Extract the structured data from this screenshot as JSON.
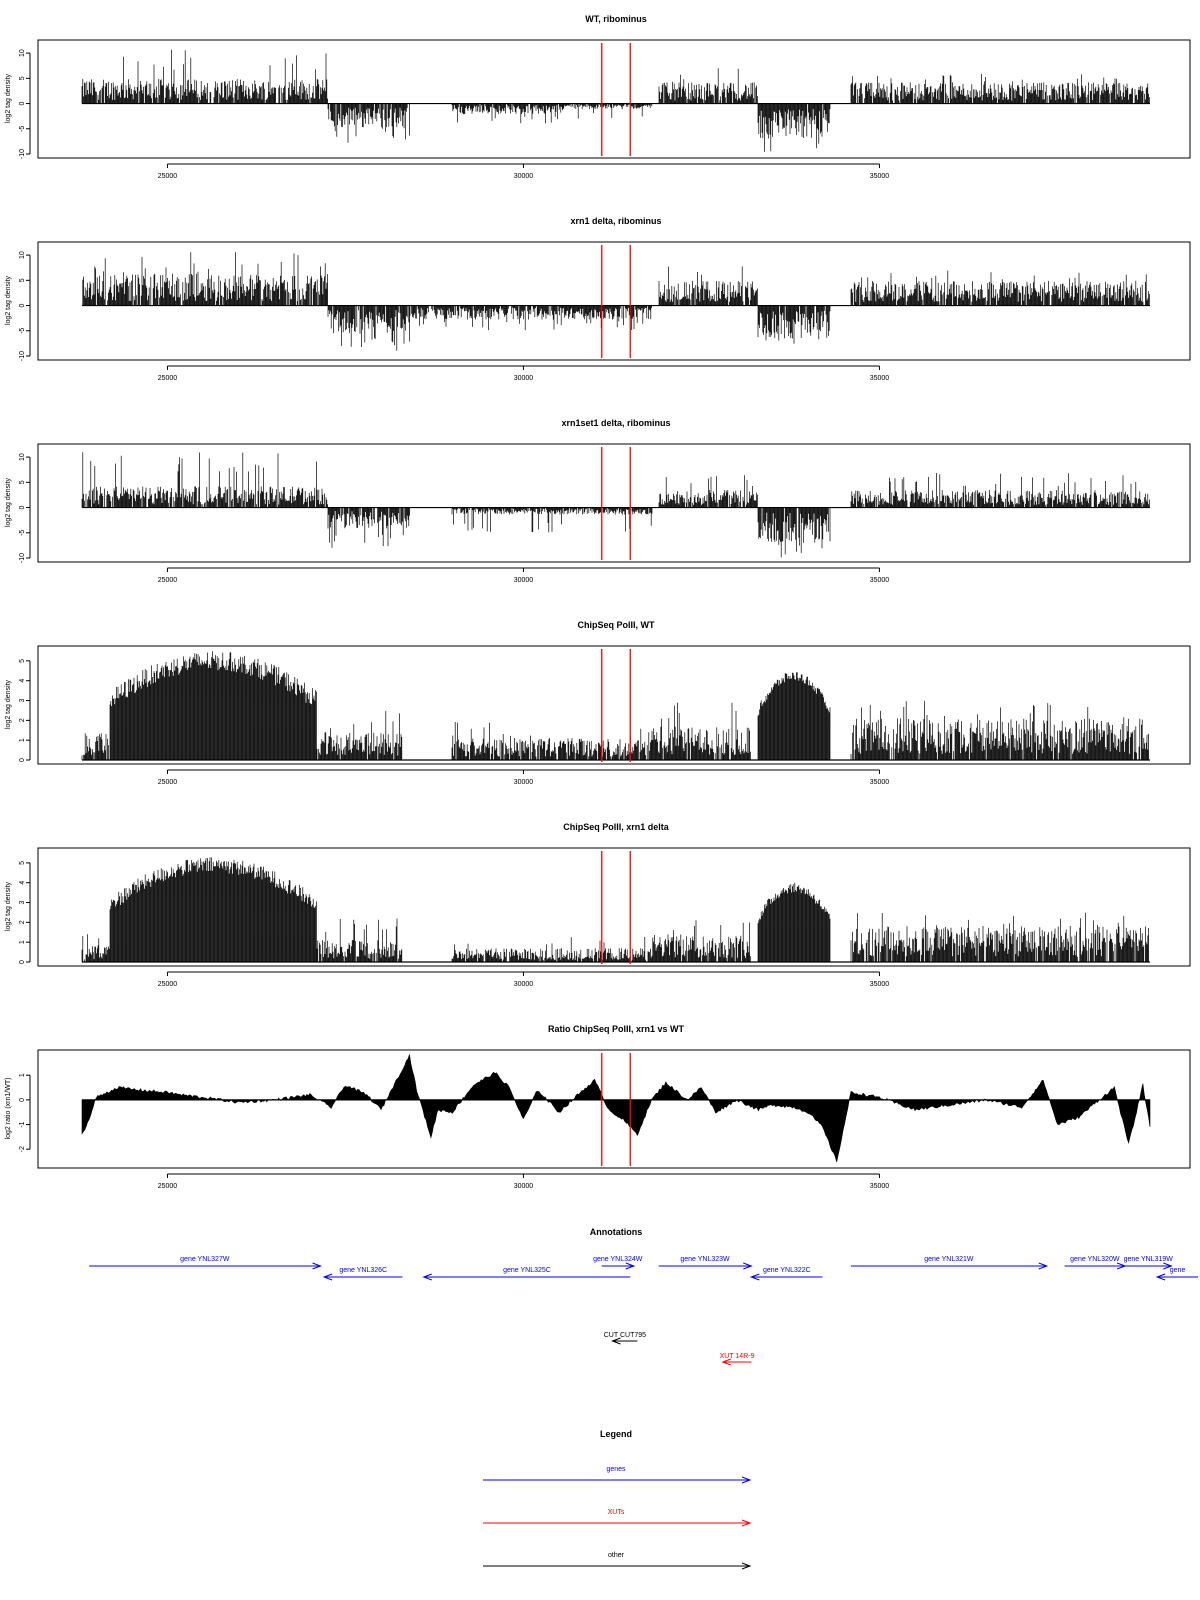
{
  "x_axis": {
    "min": 23800,
    "max": 38800,
    "ticks": [
      25000,
      30000,
      35000
    ]
  },
  "red_markers": [
    31100,
    31500
  ],
  "chart_data": [
    {
      "type": "bar",
      "title": "WT, ribominus",
      "ylabel": "log2 tag density",
      "ylim": [
        -10,
        12
      ],
      "yticks": [
        -10,
        -5,
        0,
        5,
        10
      ],
      "segments": [
        {
          "x": [
            23800,
            27250
          ],
          "sign": 1,
          "mean": 3.5,
          "max": 11
        },
        {
          "x": [
            27250,
            28400
          ],
          "sign": -1,
          "mean": 3.5,
          "max": 8
        },
        {
          "x": [
            29000,
            30550
          ],
          "sign": -1,
          "mean": 1.5,
          "max": 4
        },
        {
          "x": [
            30550,
            31800
          ],
          "sign": -1,
          "mean": 0.8,
          "max": 3
        },
        {
          "x": [
            31900,
            33300
          ],
          "sign": 1,
          "mean": 3.0,
          "max": 7
        },
        {
          "x": [
            33300,
            34300
          ],
          "sign": -1,
          "mean": 5.0,
          "max": 10
        },
        {
          "x": [
            34600,
            38800
          ],
          "sign": 1,
          "mean": 3.0,
          "max": 6
        }
      ]
    },
    {
      "type": "bar",
      "title": "xrn1 delta, ribominus",
      "ylabel": "log2 tag density",
      "ylim": [
        -10,
        12
      ],
      "yticks": [
        -10,
        -5,
        0,
        5,
        10
      ],
      "segments": [
        {
          "x": [
            23800,
            27250
          ],
          "sign": 1,
          "mean": 4.5,
          "max": 11
        },
        {
          "x": [
            27250,
            28400
          ],
          "sign": -1,
          "mean": 4.0,
          "max": 9
        },
        {
          "x": [
            28400,
            31800
          ],
          "sign": -1,
          "mean": 2.0,
          "max": 5
        },
        {
          "x": [
            31900,
            33300
          ],
          "sign": 1,
          "mean": 3.5,
          "max": 8
        },
        {
          "x": [
            33300,
            34300
          ],
          "sign": -1,
          "mean": 5.0,
          "max": 9
        },
        {
          "x": [
            34600,
            38800
          ],
          "sign": 1,
          "mean": 3.5,
          "max": 7
        }
      ]
    },
    {
      "type": "bar",
      "title": "xrn1set1 delta, ribominus",
      "ylabel": "log2 tag density",
      "ylim": [
        -10,
        12
      ],
      "yticks": [
        -10,
        -5,
        0,
        5,
        10
      ],
      "segments": [
        {
          "x": [
            23800,
            27250
          ],
          "sign": 1,
          "mean": 3.0,
          "max": 11
        },
        {
          "x": [
            27250,
            28400
          ],
          "sign": -1,
          "mean": 3.0,
          "max": 8
        },
        {
          "x": [
            29000,
            31800
          ],
          "sign": -1,
          "mean": 1.0,
          "max": 5
        },
        {
          "x": [
            31900,
            33300
          ],
          "sign": 1,
          "mean": 2.5,
          "max": 7
        },
        {
          "x": [
            33300,
            34300
          ],
          "sign": -1,
          "mean": 5.0,
          "max": 10
        },
        {
          "x": [
            34600,
            38800
          ],
          "sign": 1,
          "mean": 2.5,
          "max": 7
        }
      ]
    },
    {
      "type": "bar",
      "title": "ChipSeq PolII, WT",
      "ylabel": "log2 tag density",
      "ylim": [
        0,
        5.6
      ],
      "yticks": [
        0,
        1,
        2,
        3,
        4,
        5
      ],
      "segments": [
        {
          "x": [
            23800,
            24200
          ],
          "sign": 1,
          "mean": 1.0,
          "max": 2
        },
        {
          "x": [
            24200,
            27100
          ],
          "sign": 1,
          "mean": 4.5,
          "max": 5.5,
          "dense": true
        },
        {
          "x": [
            27100,
            28300
          ],
          "sign": 1,
          "mean": 1.0,
          "max": 2.5
        },
        {
          "x": [
            29000,
            31800
          ],
          "sign": 1,
          "mean": 0.8,
          "max": 2
        },
        {
          "x": [
            31800,
            33200
          ],
          "sign": 1,
          "mean": 1.2,
          "max": 3
        },
        {
          "x": [
            33300,
            34300
          ],
          "sign": 1,
          "mean": 4.0,
          "max": 4.5,
          "dense": true
        },
        {
          "x": [
            34600,
            38800
          ],
          "sign": 1,
          "mean": 1.5,
          "max": 3
        }
      ]
    },
    {
      "type": "bar",
      "title": "ChipSeq PolII, xrn1 delta",
      "ylabel": "log2 tag density",
      "ylim": [
        0,
        5.6
      ],
      "yticks": [
        0,
        1,
        2,
        3,
        4,
        5
      ],
      "segments": [
        {
          "x": [
            23800,
            24200
          ],
          "sign": 1,
          "mean": 0.6,
          "max": 1.5
        },
        {
          "x": [
            24200,
            27100
          ],
          "sign": 1,
          "mean": 4.5,
          "max": 5.3,
          "dense": true
        },
        {
          "x": [
            27100,
            28300
          ],
          "sign": 1,
          "mean": 0.8,
          "max": 2.5
        },
        {
          "x": [
            29000,
            31800
          ],
          "sign": 1,
          "mean": 0.5,
          "max": 1.3
        },
        {
          "x": [
            31800,
            33200
          ],
          "sign": 1,
          "mean": 1.0,
          "max": 2.5
        },
        {
          "x": [
            33300,
            34300
          ],
          "sign": 1,
          "mean": 3.5,
          "max": 4,
          "dense": true
        },
        {
          "x": [
            34600,
            38800
          ],
          "sign": 1,
          "mean": 1.3,
          "max": 2.5
        }
      ]
    },
    {
      "type": "area",
      "title": "Ratio ChipSeq PolII, xrn1 vs WT",
      "ylabel": "log2 ratio (xrn1/WT)",
      "ylim": [
        -2.6,
        1.9
      ],
      "yticks": [
        -2,
        -1,
        0,
        1
      ],
      "x": [
        23800,
        23900,
        24000,
        24300,
        24600,
        25000,
        25200,
        25500,
        26000,
        26500,
        27000,
        27300,
        27500,
        27800,
        28000,
        28400,
        28500,
        28700,
        28800,
        29000,
        29300,
        29600,
        29800,
        30000,
        30200,
        30500,
        30800,
        31000,
        31200,
        31400,
        31600,
        31800,
        32000,
        32300,
        32500,
        32700,
        33000,
        33300,
        33500,
        33800,
        34000,
        34200,
        34400,
        34600,
        35000,
        35500,
        36000,
        36500,
        37000,
        37300,
        37500,
        37800,
        38000,
        38300,
        38500,
        38700,
        38800
      ],
      "y": [
        -1.4,
        -0.8,
        0.1,
        0.5,
        0.4,
        0.3,
        0.2,
        0.1,
        -0.1,
        0.0,
        0.2,
        -0.3,
        0.6,
        0.2,
        -0.4,
        1.8,
        0.4,
        -1.5,
        -0.4,
        -0.5,
        0.6,
        1.1,
        0.5,
        -0.8,
        0.4,
        -0.5,
        0.3,
        0.8,
        -0.4,
        -0.8,
        -1.4,
        0.0,
        0.7,
        0.0,
        0.5,
        -0.5,
        0.0,
        -0.4,
        -0.2,
        -0.3,
        -0.5,
        -1.1,
        -2.5,
        0.3,
        0.1,
        -0.4,
        -0.2,
        0.0,
        -0.3,
        0.8,
        -1.0,
        -0.7,
        -0.2,
        0.5,
        -1.8,
        0.6,
        -1.1
      ]
    }
  ],
  "annotations": {
    "title": "Annotations",
    "genes": [
      {
        "label": "gene YNL327W",
        "start": 23900,
        "end": 27150,
        "row": 1
      },
      {
        "label": "gene YNL326C",
        "start": 27200,
        "end": 28300,
        "row": 2
      },
      {
        "label": "gene YNL325C",
        "start": 28600,
        "end": 31500,
        "row": 2
      },
      {
        "label": "gene YNL324W",
        "start": 31100,
        "end": 31550,
        "row": 1
      },
      {
        "label": "gene YNL323W",
        "start": 31900,
        "end": 33200,
        "row": 1
      },
      {
        "label": "gene YNL322C",
        "start": 33200,
        "end": 34200,
        "row": 2
      },
      {
        "label": "gene YNL321W",
        "start": 34600,
        "end": 37350,
        "row": 1
      },
      {
        "label": "gene YNL320W",
        "start": 37600,
        "end": 38450,
        "row": 1
      },
      {
        "label": "gene YNL319W",
        "start": 38450,
        "end": 39100,
        "row": 1
      },
      {
        "label": "gene",
        "start": 38900,
        "end": 39600,
        "row": 2
      }
    ],
    "other": [
      {
        "label": "CUT CUT795",
        "start": 31250,
        "end": 31600
      }
    ],
    "xuts": [
      {
        "label": "XUT 14R-9",
        "start": 32800,
        "end": 33200
      }
    ]
  },
  "legend": {
    "title": "Legend",
    "items": [
      {
        "label": "genes",
        "color": "#0000ff"
      },
      {
        "label": "XUTs",
        "color": "#ff0000"
      },
      {
        "label": "other",
        "color": "#000000"
      }
    ]
  },
  "colors": {
    "gene": "#0000ff",
    "xut": "#ff0000",
    "other": "#000000",
    "marker": "#ff0000",
    "bars": "#000000"
  }
}
